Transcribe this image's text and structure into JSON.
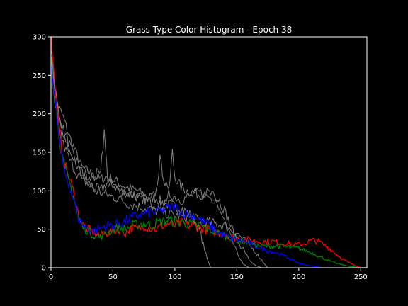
{
  "chart_data": {
    "type": "line",
    "title": "Grass Type Color Histogram - Epoch 38",
    "xlabel": "",
    "ylabel": "",
    "xlim": [
      0,
      255
    ],
    "ylim": [
      0,
      300
    ],
    "x_ticks": [
      0,
      50,
      100,
      150,
      200,
      250
    ],
    "y_ticks": [
      0,
      50,
      100,
      150,
      200,
      250,
      300
    ],
    "grid": false,
    "colors": {
      "background": "#000000",
      "axes": "#ffffff",
      "red": "#ff0000",
      "green": "#008000",
      "blue": "#0000ff",
      "gray": "#808080"
    },
    "series": [
      {
        "color": "gray",
        "points": [
          [
            0,
            290
          ],
          [
            3,
            230
          ],
          [
            6,
            210
          ],
          [
            10,
            195
          ],
          [
            15,
            170
          ],
          [
            20,
            150
          ],
          [
            25,
            130
          ],
          [
            30,
            125
          ],
          [
            35,
            120
          ],
          [
            40,
            115
          ],
          [
            45,
            118
          ],
          [
            50,
            115
          ],
          [
            55,
            110
          ],
          [
            60,
            105
          ],
          [
            65,
            102
          ],
          [
            70,
            100
          ],
          [
            75,
            95
          ],
          [
            80,
            92
          ],
          [
            85,
            90
          ],
          [
            90,
            85
          ],
          [
            95,
            82
          ],
          [
            100,
            80
          ],
          [
            105,
            78
          ],
          [
            110,
            72
          ],
          [
            115,
            65
          ],
          [
            120,
            48
          ],
          [
            123,
            30
          ],
          [
            126,
            12
          ],
          [
            129,
            0
          ]
        ]
      },
      {
        "color": "gray",
        "points": [
          [
            0,
            280
          ],
          [
            3,
            240
          ],
          [
            6,
            200
          ],
          [
            10,
            180
          ],
          [
            15,
            160
          ],
          [
            20,
            135
          ],
          [
            25,
            120
          ],
          [
            30,
            110
          ],
          [
            35,
            105
          ],
          [
            40,
            100
          ],
          [
            45,
            110
          ],
          [
            50,
            108
          ],
          [
            55,
            100
          ],
          [
            60,
            98
          ],
          [
            65,
            95
          ],
          [
            70,
            92
          ],
          [
            75,
            90
          ],
          [
            80,
            85
          ],
          [
            85,
            82
          ],
          [
            90,
            80
          ],
          [
            95,
            95
          ],
          [
            98,
            150
          ],
          [
            100,
            118
          ],
          [
            105,
            105
          ],
          [
            110,
            100
          ],
          [
            115,
            98
          ],
          [
            120,
            95
          ],
          [
            125,
            98
          ],
          [
            130,
            95
          ],
          [
            135,
            80
          ],
          [
            140,
            60
          ],
          [
            145,
            40
          ],
          [
            150,
            20
          ],
          [
            155,
            5
          ],
          [
            160,
            0
          ]
        ]
      },
      {
        "color": "gray",
        "points": [
          [
            0,
            270
          ],
          [
            3,
            220
          ],
          [
            6,
            200
          ],
          [
            10,
            170
          ],
          [
            15,
            150
          ],
          [
            20,
            140
          ],
          [
            25,
            125
          ],
          [
            30,
            120
          ],
          [
            35,
            118
          ],
          [
            40,
            130
          ],
          [
            43,
            175
          ],
          [
            46,
            110
          ],
          [
            50,
            108
          ],
          [
            55,
            100
          ],
          [
            60,
            98
          ],
          [
            65,
            95
          ],
          [
            70,
            92
          ],
          [
            75,
            88
          ],
          [
            80,
            86
          ],
          [
            85,
            100
          ],
          [
            88,
            140
          ],
          [
            92,
            110
          ],
          [
            95,
            96
          ],
          [
            100,
            92
          ],
          [
            105,
            88
          ],
          [
            110,
            92
          ],
          [
            115,
            95
          ],
          [
            120,
            98
          ],
          [
            125,
            95
          ],
          [
            130,
            90
          ],
          [
            135,
            90
          ],
          [
            140,
            75
          ],
          [
            145,
            55
          ],
          [
            150,
            35
          ],
          [
            155,
            25
          ],
          [
            160,
            10
          ],
          [
            165,
            3
          ],
          [
            170,
            0
          ]
        ]
      },
      {
        "color": "gray",
        "points": [
          [
            0,
            260
          ],
          [
            3,
            210
          ],
          [
            6,
            190
          ],
          [
            10,
            160
          ],
          [
            15,
            140
          ],
          [
            20,
            125
          ],
          [
            25,
            115
          ],
          [
            30,
            108
          ],
          [
            35,
            100
          ],
          [
            40,
            98
          ],
          [
            45,
            95
          ],
          [
            50,
            92
          ],
          [
            55,
            90
          ],
          [
            60,
            85
          ],
          [
            65,
            82
          ],
          [
            70,
            80
          ],
          [
            75,
            78
          ],
          [
            80,
            76
          ],
          [
            85,
            74
          ],
          [
            90,
            72
          ],
          [
            95,
            70
          ],
          [
            100,
            68
          ],
          [
            110,
            65
          ],
          [
            120,
            62
          ],
          [
            130,
            58
          ],
          [
            140,
            55
          ],
          [
            150,
            45
          ],
          [
            160,
            30
          ],
          [
            170,
            10
          ],
          [
            175,
            0
          ]
        ]
      },
      {
        "color": "red",
        "points": [
          [
            0,
            300
          ],
          [
            2,
            260
          ],
          [
            4,
            220
          ],
          [
            6,
            190
          ],
          [
            8,
            160
          ],
          [
            10,
            140
          ],
          [
            14,
            120
          ],
          [
            18,
            100
          ],
          [
            22,
            70
          ],
          [
            26,
            55
          ],
          [
            30,
            50
          ],
          [
            35,
            45
          ],
          [
            40,
            42
          ],
          [
            45,
            45
          ],
          [
            50,
            48
          ],
          [
            55,
            50
          ],
          [
            60,
            45
          ],
          [
            65,
            52
          ],
          [
            70,
            50
          ],
          [
            75,
            55
          ],
          [
            80,
            52
          ],
          [
            85,
            50
          ],
          [
            90,
            55
          ],
          [
            95,
            57
          ],
          [
            100,
            55
          ],
          [
            105,
            58
          ],
          [
            110,
            55
          ],
          [
            115,
            55
          ],
          [
            120,
            52
          ],
          [
            125,
            50
          ],
          [
            130,
            48
          ],
          [
            135,
            45
          ],
          [
            140,
            45
          ],
          [
            145,
            40
          ],
          [
            150,
            38
          ],
          [
            155,
            38
          ],
          [
            160,
            36
          ],
          [
            165,
            35
          ],
          [
            170,
            34
          ],
          [
            175,
            34
          ],
          [
            180,
            34
          ],
          [
            185,
            32
          ],
          [
            190,
            32
          ],
          [
            195,
            30
          ],
          [
            200,
            30
          ],
          [
            205,
            32
          ],
          [
            210,
            35
          ],
          [
            215,
            35
          ],
          [
            220,
            30
          ],
          [
            225,
            25
          ],
          [
            230,
            18
          ],
          [
            235,
            12
          ],
          [
            240,
            7
          ],
          [
            245,
            3
          ],
          [
            248,
            1
          ],
          [
            250,
            0
          ],
          [
            255,
            0
          ]
        ]
      },
      {
        "color": "green",
        "points": [
          [
            0,
            280
          ],
          [
            2,
            240
          ],
          [
            4,
            210
          ],
          [
            6,
            180
          ],
          [
            8,
            155
          ],
          [
            10,
            135
          ],
          [
            14,
            115
          ],
          [
            18,
            95
          ],
          [
            22,
            65
          ],
          [
            26,
            52
          ],
          [
            30,
            48
          ],
          [
            35,
            42
          ],
          [
            40,
            40
          ],
          [
            45,
            45
          ],
          [
            50,
            50
          ],
          [
            55,
            52
          ],
          [
            60,
            50
          ],
          [
            65,
            55
          ],
          [
            70,
            56
          ],
          [
            75,
            58
          ],
          [
            80,
            55
          ],
          [
            85,
            58
          ],
          [
            90,
            60
          ],
          [
            95,
            62
          ],
          [
            100,
            60
          ],
          [
            105,
            60
          ],
          [
            110,
            58
          ],
          [
            115,
            56
          ],
          [
            120,
            55
          ],
          [
            125,
            52
          ],
          [
            130,
            48
          ],
          [
            135,
            45
          ],
          [
            140,
            42
          ],
          [
            145,
            40
          ],
          [
            150,
            36
          ],
          [
            155,
            34
          ],
          [
            160,
            32
          ],
          [
            165,
            30
          ],
          [
            170,
            28
          ],
          [
            175,
            28
          ],
          [
            180,
            28
          ],
          [
            185,
            28
          ],
          [
            190,
            27
          ],
          [
            195,
            26
          ],
          [
            200,
            25
          ],
          [
            205,
            22
          ],
          [
            210,
            20
          ],
          [
            215,
            16
          ],
          [
            220,
            12
          ],
          [
            225,
            9
          ],
          [
            230,
            6
          ],
          [
            235,
            4
          ],
          [
            240,
            2
          ],
          [
            245,
            1
          ],
          [
            250,
            0
          ],
          [
            255,
            0
          ]
        ]
      },
      {
        "color": "blue",
        "points": [
          [
            0,
            270
          ],
          [
            2,
            235
          ],
          [
            4,
            205
          ],
          [
            6,
            175
          ],
          [
            8,
            150
          ],
          [
            10,
            130
          ],
          [
            14,
            110
          ],
          [
            18,
            90
          ],
          [
            22,
            65
          ],
          [
            26,
            55
          ],
          [
            30,
            50
          ],
          [
            35,
            48
          ],
          [
            40,
            52
          ],
          [
            45,
            55
          ],
          [
            50,
            55
          ],
          [
            55,
            58
          ],
          [
            60,
            60
          ],
          [
            65,
            65
          ],
          [
            70,
            68
          ],
          [
            75,
            70
          ],
          [
            80,
            72
          ],
          [
            85,
            72
          ],
          [
            90,
            75
          ],
          [
            95,
            78
          ],
          [
            100,
            80
          ],
          [
            105,
            72
          ],
          [
            110,
            70
          ],
          [
            115,
            68
          ],
          [
            120,
            62
          ],
          [
            125,
            58
          ],
          [
            130,
            52
          ],
          [
            135,
            45
          ],
          [
            140,
            42
          ],
          [
            145,
            38
          ],
          [
            150,
            36
          ],
          [
            155,
            35
          ],
          [
            160,
            32
          ],
          [
            165,
            28
          ],
          [
            170,
            25
          ],
          [
            175,
            22
          ],
          [
            180,
            20
          ],
          [
            185,
            18
          ],
          [
            190,
            14
          ],
          [
            195,
            10
          ],
          [
            200,
            6
          ],
          [
            205,
            4
          ],
          [
            210,
            2
          ],
          [
            215,
            1
          ],
          [
            220,
            0
          ],
          [
            255,
            0
          ]
        ]
      }
    ]
  }
}
